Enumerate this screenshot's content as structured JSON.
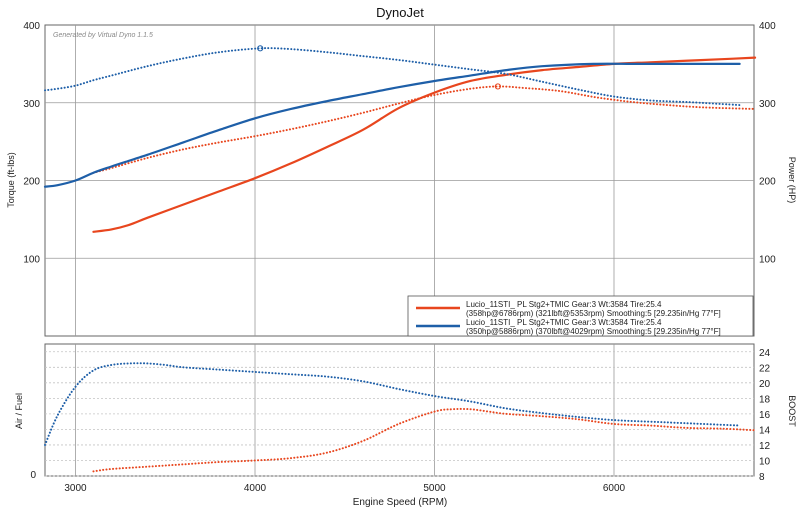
{
  "chart_data": [
    {
      "type": "line",
      "title": "DynoJet",
      "watermark": "Generated by Virtual Dyno 1.1.5",
      "xlabel": "Engine Speed (RPM)",
      "ylabel": "Torque (ft-lbs)",
      "y2label": "Power (HP)",
      "xlim": [
        2830,
        6780
      ],
      "ylim": [
        0,
        400
      ],
      "y2lim": [
        0,
        400
      ],
      "xticks": [
        "3000",
        "4000",
        "5000",
        "6000"
      ],
      "yticks": [
        "100",
        "200",
        "300",
        "400"
      ],
      "y2ticks": [
        "100",
        "200",
        "300",
        "400"
      ],
      "grid": true,
      "legend_position": "bottom-right",
      "colors": {
        "red": "#e8461e",
        "blue": "#1e5fa8"
      },
      "legend": [
        {
          "line1": "Lucio_11STI_ PL Stg2+TMIC Gear:3 Wt:3584 Tire:25.4",
          "line2": "(358hp@6786rpm) (321lbft@5353rpm) Smoothing:5 [29.235in/Hg 77°F]",
          "color": "#e8461e"
        },
        {
          "line1": "Lucio_11STI_ PL Stg2+TMIC Gear:3 Wt:3584 Tire:25.4",
          "line2": "(350hp@5886rpm) (370lbft@4029rpm) Smoothing:5 [29.235in/Hg 77°F]",
          "color": "#1e5fa8"
        }
      ],
      "series": [
        {
          "color": "#e8461e",
          "style": "solid",
          "axis": "right",
          "x": [
            3100,
            3200,
            3300,
            3400,
            3600,
            3800,
            4000,
            4200,
            4400,
            4600,
            4800,
            5000,
            5200,
            5400,
            5600,
            5800,
            6000,
            6200,
            6400,
            6600,
            6786
          ],
          "y": [
            134,
            137,
            143,
            152,
            169,
            186,
            203,
            222,
            243,
            265,
            293,
            313,
            328,
            336,
            342,
            346,
            350,
            352,
            354,
            356,
            358
          ]
        },
        {
          "color": "#e8461e",
          "style": "dotted",
          "axis": "left",
          "x": [
            3100,
            3200,
            3400,
            3600,
            3800,
            4000,
            4200,
            4400,
            4600,
            4800,
            5000,
            5200,
            5353,
            5500,
            5700,
            5900,
            6100,
            6300,
            6500,
            6786
          ],
          "y": [
            210,
            216,
            229,
            240,
            249,
            257,
            266,
            276,
            287,
            299,
            310,
            318,
            321,
            319,
            315,
            307,
            301,
            297,
            294,
            292
          ]
        },
        {
          "color": "#1e5fa8",
          "style": "solid",
          "axis": "right",
          "x": [
            2830,
            2900,
            3000,
            3100,
            3200,
            3400,
            3600,
            3800,
            4000,
            4200,
            4400,
            4600,
            4800,
            5000,
            5200,
            5400,
            5600,
            5886,
            6100,
            6300,
            6500,
            6700
          ],
          "y": [
            192,
            194,
            200,
            210,
            218,
            233,
            249,
            265,
            280,
            292,
            302,
            311,
            320,
            328,
            335,
            342,
            347,
            350,
            350,
            350,
            350,
            350
          ]
        },
        {
          "color": "#1e5fa8",
          "style": "dotted",
          "axis": "left",
          "x": [
            2830,
            2900,
            3000,
            3100,
            3200,
            3400,
            3600,
            3800,
            4029,
            4200,
            4400,
            4600,
            4800,
            5000,
            5200,
            5400,
            5600,
            5800,
            6000,
            6200,
            6400,
            6700
          ],
          "y": [
            316,
            318,
            322,
            329,
            335,
            347,
            357,
            365,
            370,
            369,
            365,
            360,
            355,
            349,
            343,
            337,
            327,
            317,
            308,
            303,
            301,
            297
          ]
        }
      ]
    },
    {
      "type": "line",
      "xlabel": "Engine Speed (RPM)",
      "ylabel": "Air / Fuel",
      "y2label": "BOOST",
      "xlim": [
        2830,
        6780
      ],
      "ylim": [
        0,
        1
      ],
      "y2lim": [
        8,
        25
      ],
      "yticks": [
        "0"
      ],
      "y2ticks": [
        "8",
        "10",
        "12",
        "14",
        "16",
        "18",
        "20",
        "22",
        "24"
      ],
      "grid": true,
      "series": [
        {
          "color": "#1e5fa8",
          "style": "dotted",
          "axis": "right",
          "x": [
            2830,
            2900,
            3000,
            3100,
            3200,
            3300,
            3400,
            3500,
            3600,
            3800,
            4000,
            4200,
            4400,
            4600,
            4800,
            5000,
            5200,
            5400,
            5600,
            5800,
            6000,
            6200,
            6400,
            6700
          ],
          "y": [
            12.0,
            15.8,
            19.5,
            21.6,
            22.3,
            22.5,
            22.5,
            22.3,
            22.0,
            21.7,
            21.4,
            21.1,
            20.8,
            20.2,
            19.2,
            18.3,
            17.6,
            16.7,
            16.1,
            15.6,
            15.2,
            15.0,
            14.8,
            14.5
          ]
        },
        {
          "color": "#e8461e",
          "style": "dotted",
          "axis": "right",
          "x": [
            3100,
            3200,
            3400,
            3600,
            3800,
            4000,
            4200,
            4400,
            4600,
            4800,
            5000,
            5100,
            5200,
            5300,
            5400,
            5600,
            5800,
            6000,
            6200,
            6400,
            6600,
            6780
          ],
          "y": [
            8.6,
            8.9,
            9.2,
            9.5,
            9.8,
            10.0,
            10.3,
            11.0,
            12.5,
            14.7,
            16.3,
            16.6,
            16.6,
            16.3,
            16.0,
            15.7,
            15.3,
            14.7,
            14.5,
            14.2,
            14.1,
            13.9
          ]
        }
      ]
    }
  ]
}
